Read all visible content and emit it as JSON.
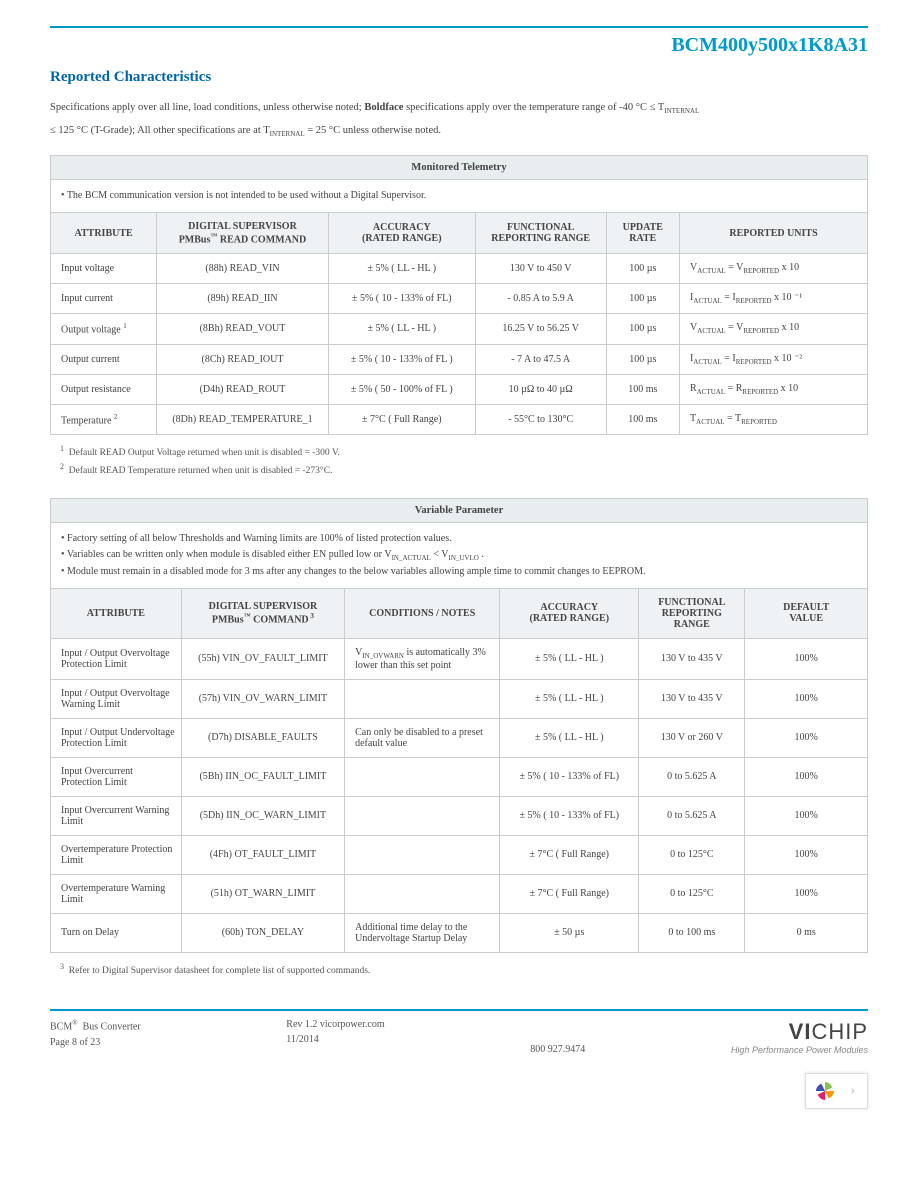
{
  "header": {
    "part_number": "BCM400y500x1K8A31"
  },
  "section": {
    "title": "Reported Characteristics"
  },
  "spec_text": {
    "line1a": "Specifications apply over all line, load conditions, unless otherwise noted; ",
    "line1b": "Boldface",
    "line1c": " specifications apply over the temperature range of -40 °C ≤ T",
    "line1sub": "INTERNAL",
    "line2a": "≤  125 °C (T-Grade); All other specifications are at T",
    "line2sub": "INTERNAL",
    "line2b": "  =  25 °C unless otherwise noted."
  },
  "table1": {
    "title": "Monitored Telemetry",
    "note": "• The BCM communication version is not intended to be used without a Digital Supervisor.",
    "headers": {
      "attribute": "ATTRIBUTE",
      "command_l1": "DIGITAL SUPERVISOR",
      "command_l2a": "PMBus",
      "command_l2b": " READ COMMAND",
      "accuracy_l1": "ACCURACY",
      "accuracy_l2": "(RATED RANGE)",
      "range_l1": "FUNCTIONAL",
      "range_l2": "REPORTING RANGE",
      "rate_l1": "UPDATE",
      "rate_l2": "RATE",
      "units": "REPORTED UNITS"
    },
    "rows": [
      {
        "attr": "Input voltage",
        "cmd": "(88h) READ_VIN",
        "acc": "± 5% ( LL - HL )",
        "range": "130 V to 450 V",
        "rate": "100 µs",
        "units_a": "V",
        "units_sub1": "ACTUAL",
        "units_mid": "  = V",
        "units_sub2": "REPORTED",
        "units_end": "  x 10"
      },
      {
        "attr": "Input current",
        "cmd": "(89h) READ_IIN",
        "acc": "± 5% ( 10 - 133% of FL)",
        "range": "- 0.85 A to 5.9 A",
        "rate": "100 µs",
        "units_a": "I",
        "units_sub1": "ACTUAL",
        "units_mid": "  = I",
        "units_sub2": "REPORTED",
        "units_end": "  x 10 ⁻¹"
      },
      {
        "attr": "Output voltage ",
        "attr_sup": "1",
        "cmd": "(8Bh) READ_VOUT",
        "acc": "± 5% ( LL - HL )",
        "range": "16.25 V to 56.25 V",
        "rate": "100 µs",
        "units_a": "V",
        "units_sub1": "ACTUAL",
        "units_mid": "  = V",
        "units_sub2": "REPORTED",
        "units_end": "  x 10"
      },
      {
        "attr": "Output current",
        "cmd": "(8Ch) READ_IOUT",
        "acc": "± 5% ( 10 - 133% of FL )",
        "range": "- 7 A to 47.5 A",
        "rate": "100 µs",
        "units_a": "I",
        "units_sub1": "ACTUAL",
        "units_mid": "  = I",
        "units_sub2": "REPORTED",
        "units_end": "  x 10 ⁻²"
      },
      {
        "attr": "Output resistance",
        "cmd": "(D4h) READ_ROUT",
        "acc": "± 5% ( 50 - 100% of FL )",
        "range": "10 µΩ to 40 µΩ",
        "rate": "100 ms",
        "units_a": "R",
        "units_sub1": "ACTUAL",
        "units_mid": "  = R",
        "units_sub2": "REPORTED",
        "units_end": "  x 10"
      },
      {
        "attr": "Temperature ",
        "attr_sup": "2",
        "cmd": "(8Dh) READ_TEMPERATURE_1",
        "acc": "± 7°C ( Full Range)",
        "range": "- 55°C to 130°C",
        "rate": "100 ms",
        "units_a": "T",
        "units_sub1": "ACTUAL",
        "units_mid": "  = T",
        "units_sub2": "REPORTED",
        "units_end": ""
      }
    ]
  },
  "footnotes1": {
    "fn1": "Default READ Output Voltage returned when unit is disabled = -300 V.",
    "fn2": "Default READ Temperature returned when unit is disabled = -273°C."
  },
  "table2": {
    "title": "Variable Parameter",
    "note1": "• Factory setting of all below Thresholds and Warning limits are 100% of listed protection values.",
    "note2a": "• Variables can be written only when module is disabled either EN pulled low or V",
    "note2sub1": "IN_ACTUAL",
    "note2mid": " < V",
    "note2sub2": "IN_UVLO",
    "note2end": " .",
    "note3": "• Module must remain in a disabled mode for 3 ms after any changes to the below variables allowing ample time to commit changes to EEPROM.",
    "headers": {
      "attribute": "ATTRIBUTE",
      "command_l1": "DIGITAL SUPERVISOR",
      "command_l2a": "PMBus",
      "command_l2b": " COMMAND",
      "cond": "CONDITIONS / NOTES",
      "accuracy_l1": "ACCURACY",
      "accuracy_l2": "(RATED RANGE)",
      "range_l1": "FUNCTIONAL",
      "range_l2": "REPORTING",
      "range_l3": "RANGE",
      "def_l1": "DEFAULT",
      "def_l2": "VALUE"
    },
    "rows": [
      {
        "attr": "Input / Output Overvoltage Protection Limit",
        "cmd": "(55h) VIN_OV_FAULT_LIMIT",
        "cond_a": "V",
        "cond_sub": "IN_OVWARN",
        "cond_b": " is automatically 3% lower than this set point",
        "acc": "± 5% ( LL - HL )",
        "range": "130 V to 435 V",
        "def": "100%"
      },
      {
        "attr": "Input / Output Overvoltage Warning Limit",
        "cmd": "(57h) VIN_OV_WARN_LIMIT",
        "cond": "",
        "acc": "± 5% ( LL - HL )",
        "range": "130 V to 435 V",
        "def": "100%"
      },
      {
        "attr": "Input / Output Undervoltage Protection Limit",
        "cmd": "(D7h) DISABLE_FAULTS",
        "cond": "Can only be disabled to a preset default value",
        "acc": "± 5% ( LL - HL )",
        "range": "130 V or 260 V",
        "def": "100%"
      },
      {
        "attr": "Input Overcurrent Protection Limit",
        "cmd": "(5Bh) IIN_OC_FAULT_LIMIT",
        "cond": "",
        "acc": "± 5% ( 10 - 133% of FL)",
        "range": "0 to 5.625 A",
        "def": "100%"
      },
      {
        "attr": "Input Overcurrent Warning Limit",
        "cmd": "(5Dh) IIN_OC_WARN_LIMIT",
        "cond": "",
        "acc": "± 5% ( 10 - 133% of FL)",
        "range": "0 to 5.625 A",
        "def": "100%"
      },
      {
        "attr": "Overtemperature Protection Limit",
        "cmd": "(4Fh) OT_FAULT_LIMIT",
        "cond": "",
        "acc": "± 7°C ( Full Range)",
        "range": "0 to 125°C",
        "def": "100%"
      },
      {
        "attr": "Overtemperature Warning Limit",
        "cmd": "(51h) OT_WARN_LIMIT",
        "cond": "",
        "acc": "± 7°C ( Full Range)",
        "range": "0 to 125°C",
        "def": "100%"
      },
      {
        "attr": "Turn on Delay",
        "cmd": "(60h) TON_DELAY",
        "cond": "Additional time delay to the Undervoltage Startup Delay",
        "acc": "± 50 µs",
        "range": "0 to 100 ms",
        "def": "0 ms"
      }
    ]
  },
  "footnotes2": {
    "fn3": "Refer to Digital Supervisor datasheet for complete list of supported commands."
  },
  "footer": {
    "col1_l1a": "BCM",
    "col1_l1b": "Bus Converter",
    "col1_l2": "Page 8 of 23",
    "col2_l1": "Rev  1.2  vicorpower.com",
    "col2_l2": "11/2014",
    "col3": "800 927.9474",
    "logo_a": "VI",
    "logo_b": "CHIP",
    "tagline": "High Performance Power Modules"
  },
  "colors": {
    "accent": "#0099cc",
    "title": "#0066aa",
    "th_bg": "#eef2f4",
    "border": "#cccccc",
    "text": "#444444"
  }
}
